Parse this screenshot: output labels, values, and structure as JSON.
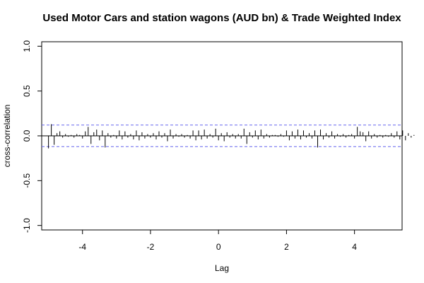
{
  "chart_data": {
    "type": "bar",
    "title": "Used Motor Cars and station wagons (AUD bn) & Trade Weighted Index",
    "xlabel": "Lag",
    "ylabel": "cross-correlation",
    "xlim": [
      -5.2,
      5.4
    ],
    "ylim": [
      -1.05,
      1.05
    ],
    "x_ticks": [
      -4,
      -2,
      0,
      2,
      4
    ],
    "y_ticks": [
      -1.0,
      -0.5,
      0.0,
      0.5,
      1.0
    ],
    "x_tick_labels": [
      "-4",
      "-2",
      "0",
      "2",
      "4"
    ],
    "y_tick_labels": [
      "-1.0",
      "-0.5",
      "0.0",
      "0.5",
      "1.0"
    ],
    "confidence_bounds": [
      0.12,
      -0.12
    ],
    "bound_color": "#6666ee",
    "grid": false,
    "lag_step": 0.0833333,
    "lags": {
      "start": -5.0,
      "values": [
        -0.14,
        0.13,
        -0.1,
        0.03,
        0.05,
        -0.02,
        0.02,
        -0.01,
        0.01,
        -0.02,
        0.02,
        0.01,
        -0.03,
        0.05,
        0.1,
        -0.09,
        0.04,
        0.07,
        -0.05,
        0.06,
        -0.13,
        0.03,
        -0.02,
        0.01,
        -0.03,
        0.06,
        -0.04,
        0.05,
        -0.02,
        0.02,
        -0.04,
        0.06,
        -0.05,
        0.04,
        -0.03,
        0.02,
        -0.02,
        0.03,
        -0.04,
        0.05,
        -0.02,
        0.03,
        -0.06,
        0.07,
        -0.03,
        0.02,
        -0.01,
        0.02,
        -0.02,
        0.01,
        -0.03,
        0.06,
        -0.05,
        0.06,
        -0.04,
        0.07,
        -0.03,
        0.02,
        -0.02,
        0.08,
        -0.05,
        0.03,
        -0.06,
        0.04,
        -0.02,
        0.02,
        -0.03,
        0.02,
        -0.03,
        0.08,
        -0.09,
        0.04,
        -0.02,
        0.06,
        -0.04,
        0.07,
        -0.03,
        0.02,
        -0.02,
        0.01,
        0.01,
        -0.01,
        0.02,
        -0.01,
        0.06,
        -0.05,
        0.05,
        -0.03,
        0.07,
        -0.04,
        0.06,
        -0.02,
        0.03,
        -0.03,
        0.06,
        -0.13,
        0.07,
        -0.04,
        0.03,
        -0.02,
        0.05,
        -0.03,
        0.02,
        -0.01,
        0.02,
        -0.02,
        0.01,
        0.02,
        -0.03,
        0.1,
        0.05,
        0.04,
        -0.06,
        0.05,
        -0.03,
        0.02,
        -0.02,
        0.01,
        -0.02,
        0.01,
        -0.01,
        0.03,
        -0.02,
        0.05,
        -0.04,
        0.06,
        -0.05,
        0.03,
        -0.02,
        0.01
      ]
    }
  }
}
